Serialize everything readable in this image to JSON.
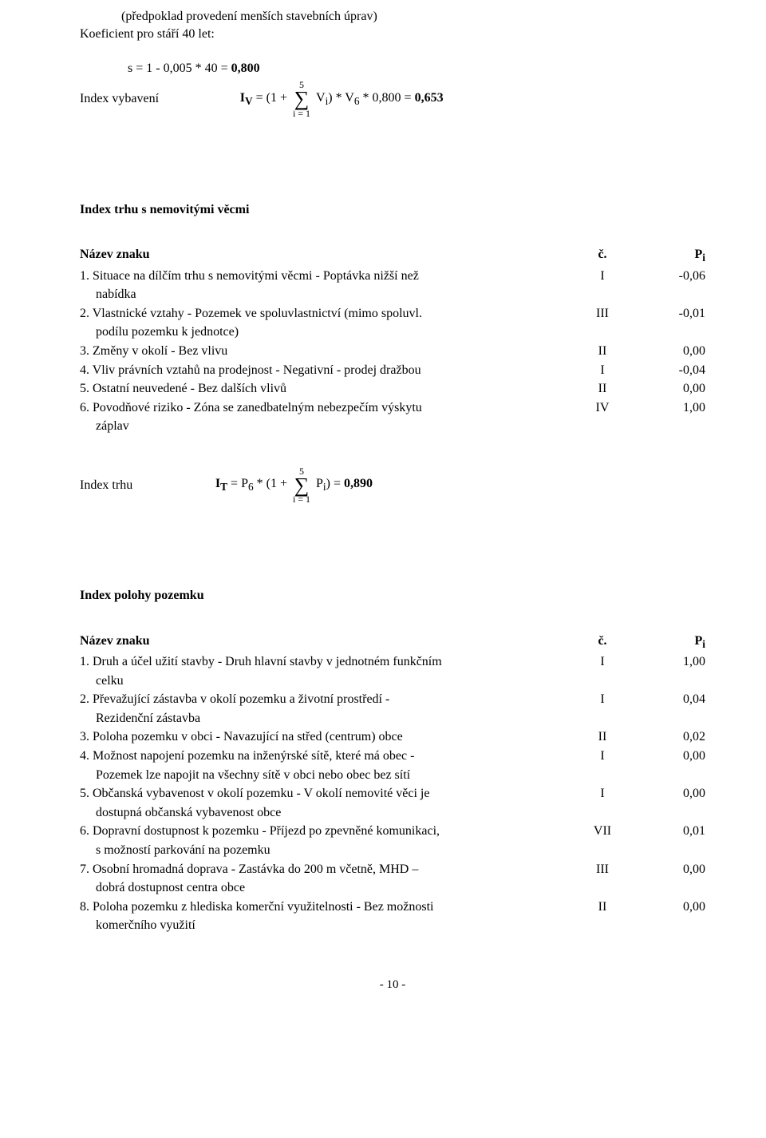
{
  "intro": {
    "line1": "(předpoklad provedení menších stavebních úprav)",
    "line2": "Koeficient pro stáří 40 let:",
    "line3": "s = 1 - 0,005 * 40 = ",
    "line3_bold": "0,800"
  },
  "formula1": {
    "label": "Index vybavení",
    "lhs": "I",
    "lhs_sub": "V",
    "eq_pre": " = (1 + ",
    "sum_upper": "5",
    "sum_lower": "i = 1",
    "rhs_pre": " V",
    "rhs_sub": "i",
    "rhs_mid": ") * V",
    "rhs_sub2": "6",
    "rhs_post": " * 0,800 = ",
    "result": "0,653"
  },
  "section1": {
    "title": "Index trhu s nemovitými věcmi",
    "header": {
      "name_label": "Název znaku",
      "num_label": "č.",
      "val_label": "P",
      "val_sub": "i"
    },
    "rows": [
      {
        "l1": "1. Situace na dílčím trhu s nemovitými věcmi - Poptávka nižší než",
        "l2": "nabídka",
        "num": "I",
        "val": "-0,06"
      },
      {
        "l1": "2. Vlastnické vztahy - Pozemek ve spoluvlastnictví (mimo spoluvl.",
        "l2": "podílu pozemku k jednotce)",
        "num": "III",
        "val": "-0,01"
      },
      {
        "l1": "3. Změny v okolí - Bez vlivu",
        "num": "II",
        "val": "0,00"
      },
      {
        "l1": "4. Vliv právních vztahů na prodejnost - Negativní - prodej dražbou",
        "num": "I",
        "val": "-0,04"
      },
      {
        "l1": "5. Ostatní neuvedené - Bez dalších vlivů",
        "num": "II",
        "val": "0,00"
      },
      {
        "l1": "6. Povodňové riziko - Zóna se zanedbatelným nebezpečím výskytu",
        "l2": "záplav",
        "num": "IV",
        "val": "1,00"
      }
    ]
  },
  "formula2": {
    "label": "Index trhu",
    "lhs": "I",
    "lhs_sub": "T",
    "eq_pre": " = P",
    "eq_sub": "6",
    "eq_mid": " * (1 + ",
    "sum_upper": "5",
    "sum_lower": "i = 1",
    "rhs_pre": " P",
    "rhs_sub": "i",
    "rhs_post": ") = ",
    "result": "0,890"
  },
  "section2": {
    "title": "Index polohy pozemku",
    "header": {
      "name_label": "Název znaku",
      "num_label": "č.",
      "val_label": "P",
      "val_sub": "i"
    },
    "rows": [
      {
        "l1": "1. Druh a účel užití stavby - Druh hlavní stavby v jednotném funkčním",
        "l2": "celku",
        "num": "I",
        "val": "1,00"
      },
      {
        "l1": "2. Převažující zástavba v okolí pozemku a životní prostředí -",
        "l2": "Rezidenční zástavba",
        "num": "I",
        "val": "0,04"
      },
      {
        "l1": "3. Poloha pozemku v obci - Navazující na střed (centrum) obce",
        "num": "II",
        "val": "0,02"
      },
      {
        "l1": "4. Možnost napojení pozemku na inženýrské sítě, které má obec -",
        "l2": "Pozemek lze napojit na všechny sítě v obci nebo obec bez sítí",
        "num": "I",
        "val": "0,00"
      },
      {
        "l1": "5. Občanská vybavenost v okolí pozemku - V okolí nemovité věci je",
        "l2": "dostupná občanská vybavenost obce",
        "num": "I",
        "val": "0,00"
      },
      {
        "l1": "6. Dopravní dostupnost k pozemku - Příjezd po zpevněné komunikaci,",
        "l2": "s možností parkování na pozemku",
        "num": "VII",
        "val": "0,01"
      },
      {
        "l1": "7. Osobní hromadná doprava - Zastávka do 200 m včetně, MHD –",
        "l2": "dobrá dostupnost centra obce",
        "num": "III",
        "val": "0,00"
      },
      {
        "l1": "8. Poloha pozemku z hlediska komerční využitelnosti - Bez možnosti",
        "l2": "komerčního využití",
        "num": "II",
        "val": "0,00"
      }
    ]
  },
  "footer": {
    "page": "- 10 -"
  }
}
